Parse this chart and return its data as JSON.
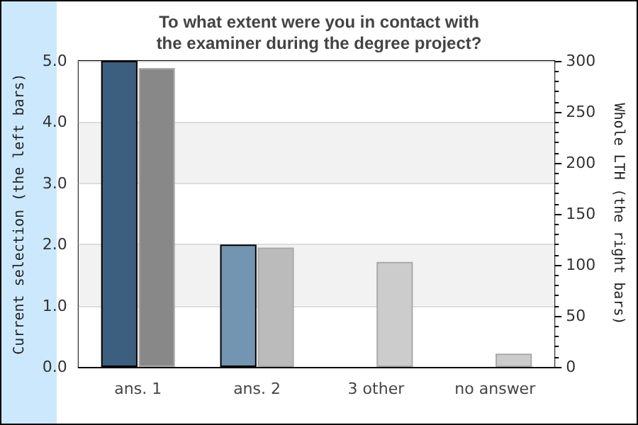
{
  "chart_data": {
    "type": "bar",
    "title": "To what extent were you in contact with\nthe examiner during the degree project?",
    "categories": [
      "ans. 1",
      "ans. 2",
      "3 other",
      "no answer"
    ],
    "ylabel": "Current selection (the left bars)",
    "y2label": "Whole LTH (the right bars)",
    "series": [
      {
        "colors": [
          "#3d5f7f",
          "#7395b1",
          "#7395b1",
          "#7395b1"
        ],
        "values": [
          5,
          2,
          0,
          0
        ]
      },
      {
        "axis": "y2",
        "colors": [
          "#888888",
          "#bbbbbb",
          "#cccccc",
          "#cccccc"
        ],
        "values": [
          293,
          117,
          103,
          13
        ]
      }
    ],
    "ylim": [
      0,
      5
    ],
    "yticks": [
      {
        "value": 0,
        "label": "0.0"
      },
      {
        "value": 1,
        "label": "1.0"
      },
      {
        "value": 2,
        "label": "2.0"
      },
      {
        "value": 3,
        "label": "3.0"
      },
      {
        "value": 4,
        "label": "4.0"
      },
      {
        "value": 5,
        "label": "5.0"
      }
    ],
    "y2lim": [
      0,
      300
    ],
    "y2ticks": [
      0,
      50,
      100,
      150,
      200,
      250,
      300
    ],
    "grid": "y"
  }
}
